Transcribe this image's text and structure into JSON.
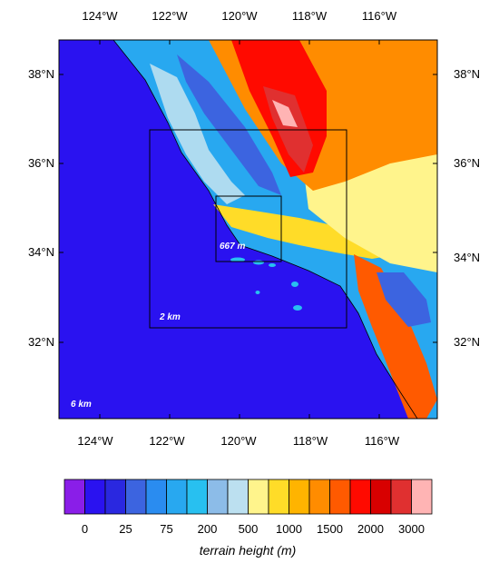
{
  "map": {
    "top_lon_labels": [
      "124°W",
      "122°W",
      "120°W",
      "118°W",
      "116°W"
    ],
    "bottom_lon_labels": [
      "124°W",
      "122°W",
      "120°W",
      "118°W",
      "116°W"
    ],
    "left_lat_labels": [
      "38°N",
      "36°N",
      "34°N",
      "32°N"
    ],
    "right_lat_labels": [
      "38°N",
      "36°N",
      "34°N",
      "32°N"
    ],
    "domains": [
      {
        "label": "6 km"
      },
      {
        "label": "2 km"
      },
      {
        "label": "667 m"
      }
    ]
  },
  "legend": {
    "title": "terrain height (m)",
    "tick_labels": [
      "0",
      "25",
      "75",
      "200",
      "500",
      "1000",
      "1500",
      "2000",
      "3000"
    ],
    "colors": [
      "#8a1ee8",
      "#2a12f0",
      "#2a28e0",
      "#3c64e0",
      "#2a8cf0",
      "#28a8f0",
      "#28c0f0",
      "#8cbce8",
      "#bce0f0",
      "#fff48c",
      "#ffdc28",
      "#ffb400",
      "#ff8c00",
      "#ff5a00",
      "#ff0a00",
      "#d80000",
      "#e03030",
      "#ffb4b4"
    ]
  }
}
